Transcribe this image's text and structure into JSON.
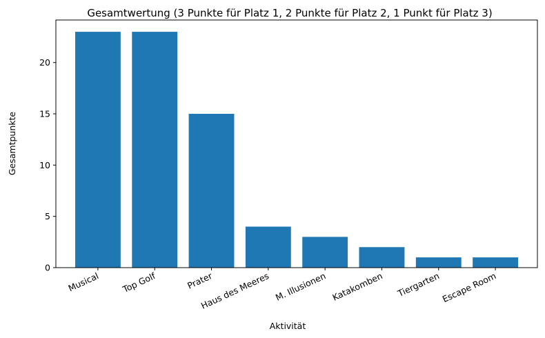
{
  "chart_data": {
    "type": "bar",
    "title": "Gesamtwertung (3 Punkte für Platz 1, 2 Punkte für Platz 2, 1 Punkt für Platz 3)",
    "xlabel": "Aktivität",
    "ylabel": "Gesamtpunkte",
    "categories": [
      "Musical",
      "Top Golf",
      "Prater",
      "Haus des Meeres",
      "M. Illusionen",
      "Katakomben",
      "Tiergarten",
      "Escape Room"
    ],
    "values": [
      23,
      23,
      15,
      4,
      3,
      2,
      1,
      1
    ],
    "ylim": [
      0,
      24.15
    ],
    "yticks": [
      0,
      5,
      10,
      15,
      20
    ],
    "grid": false,
    "legend": "none",
    "colors": {
      "bar": "#1f77b4",
      "axis": "#000000",
      "background": "#ffffff"
    }
  }
}
